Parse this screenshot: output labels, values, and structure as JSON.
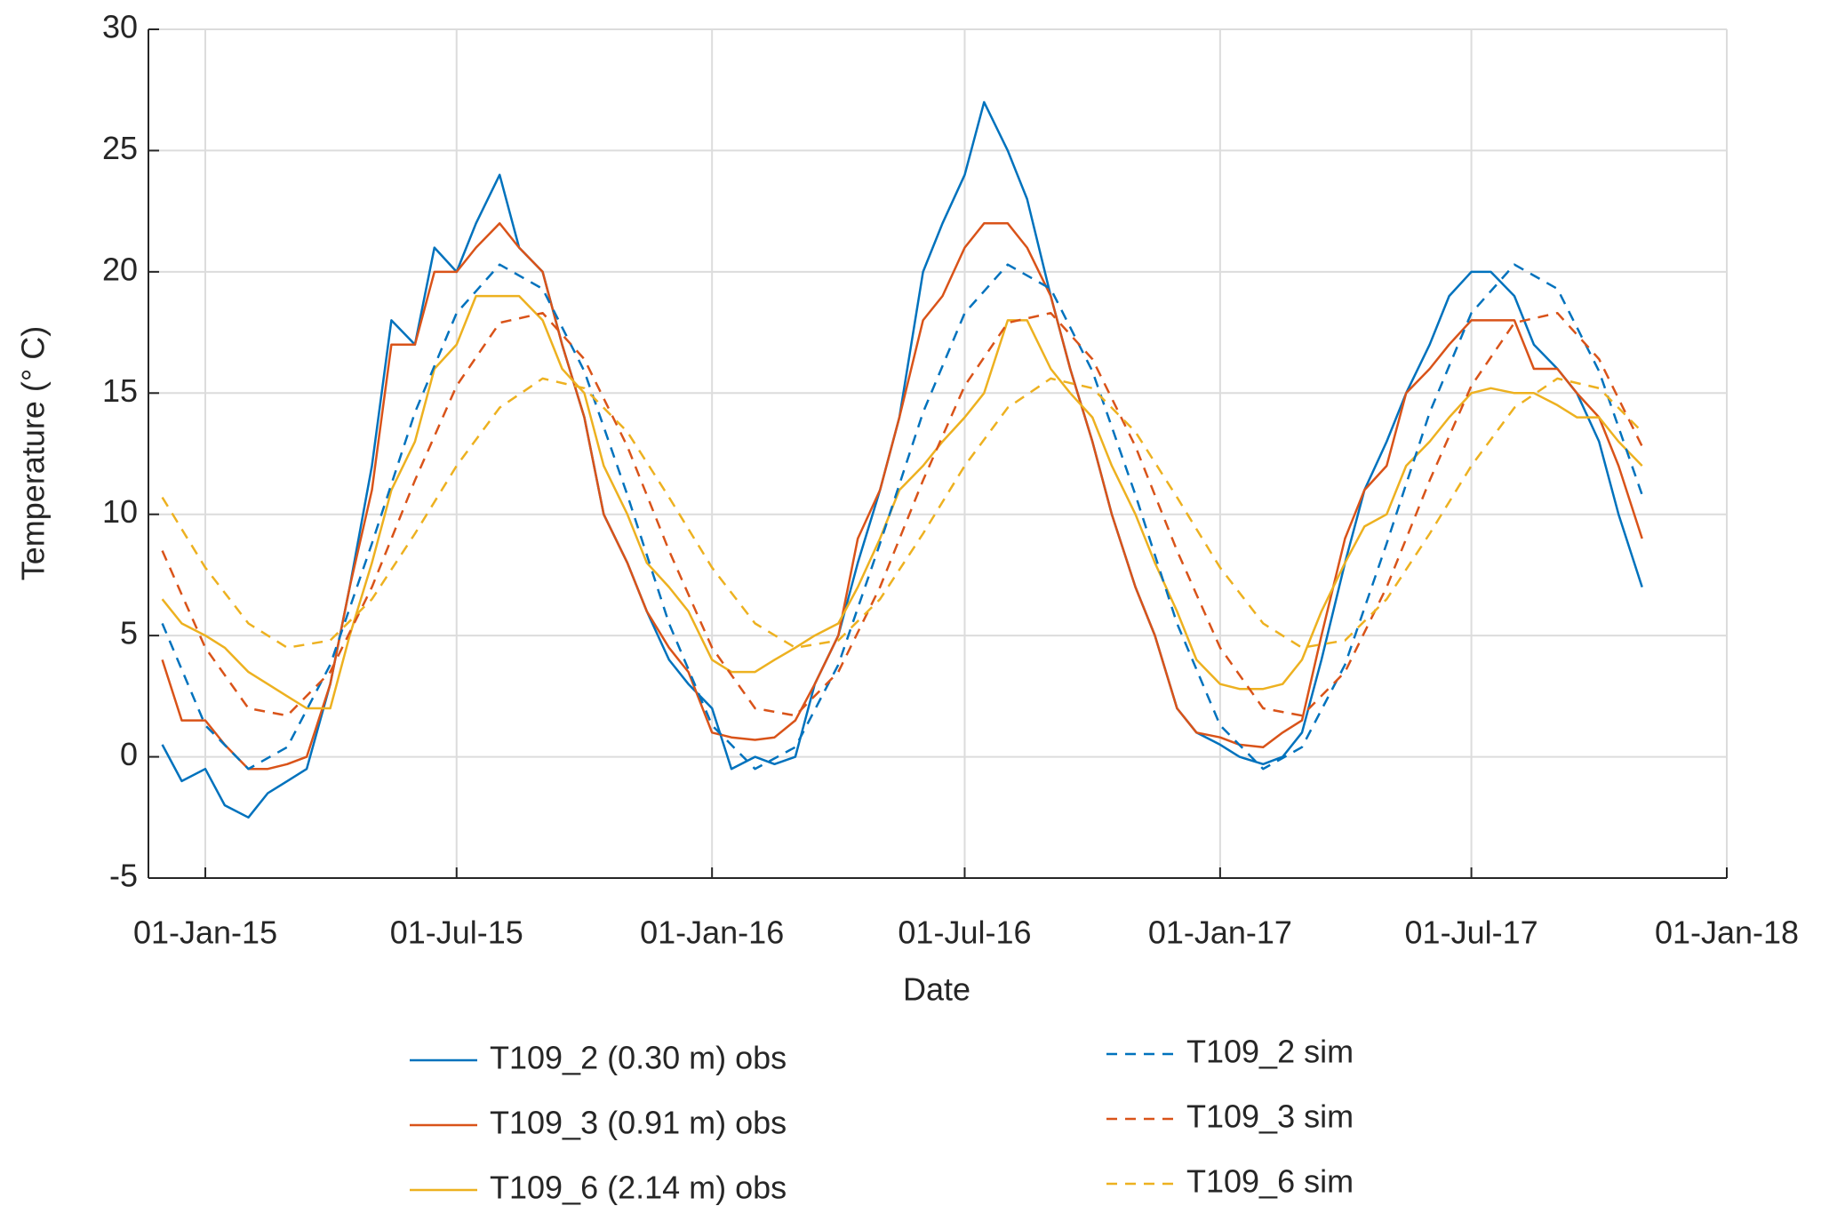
{
  "chart_data": {
    "type": "line",
    "xlabel": "Date",
    "ylabel": "Temperature (° C)",
    "xlim": [
      "2014-11-21",
      "2018-01-01"
    ],
    "xticks": [
      {
        "value": "2015-01-01",
        "label": "01-Jan-15"
      },
      {
        "value": "2015-07-01",
        "label": "01-Jul-15"
      },
      {
        "value": "2016-01-01",
        "label": "01-Jan-16"
      },
      {
        "value": "2016-07-01",
        "label": "01-Jul-16"
      },
      {
        "value": "2017-01-01",
        "label": "01-Jan-17"
      },
      {
        "value": "2017-07-01",
        "label": "01-Jul-17"
      },
      {
        "value": "2018-01-01",
        "label": "01-Jan-18"
      }
    ],
    "ylim": [
      -5,
      30
    ],
    "yticks": [
      -5,
      0,
      5,
      10,
      15,
      20,
      25,
      30
    ],
    "grid": true,
    "x": [
      "2014-12-01",
      "2014-12-15",
      "2015-01-01",
      "2015-01-15",
      "2015-02-01",
      "2015-02-15",
      "2015-03-01",
      "2015-03-15",
      "2015-04-01",
      "2015-04-15",
      "2015-05-01",
      "2015-05-15",
      "2015-06-01",
      "2015-06-15",
      "2015-07-01",
      "2015-07-15",
      "2015-08-01",
      "2015-08-15",
      "2015-09-01",
      "2015-09-15",
      "2015-10-01",
      "2015-10-15",
      "2015-11-01",
      "2015-11-15",
      "2015-12-01",
      "2015-12-15",
      "2016-01-01",
      "2016-01-15",
      "2016-02-01",
      "2016-02-15",
      "2016-03-01",
      "2016-03-15",
      "2016-04-01",
      "2016-04-15",
      "2016-05-01",
      "2016-05-15",
      "2016-06-01",
      "2016-06-15",
      "2016-07-01",
      "2016-07-15",
      "2016-08-01",
      "2016-08-15",
      "2016-09-01",
      "2016-09-15",
      "2016-10-01",
      "2016-10-15",
      "2016-11-01",
      "2016-11-15",
      "2016-12-01",
      "2016-12-15",
      "2017-01-01",
      "2017-01-15",
      "2017-02-01",
      "2017-02-15",
      "2017-03-01",
      "2017-03-15",
      "2017-04-01",
      "2017-04-15",
      "2017-05-01",
      "2017-05-15",
      "2017-06-01",
      "2017-06-15",
      "2017-07-01",
      "2017-07-15",
      "2017-08-01",
      "2017-08-15",
      "2017-09-01",
      "2017-09-15",
      "2017-10-01",
      "2017-10-15",
      "2017-11-01"
    ],
    "series": [
      {
        "name": "T109_2 (0.30 m) obs",
        "color": "#0072BD",
        "linestyle": "solid",
        "values": [
          0.5,
          -1,
          -0.5,
          -2,
          -2.5,
          -1.5,
          -1,
          -0.5,
          3,
          7,
          12,
          18,
          17,
          21,
          20,
          22,
          24,
          21,
          20,
          17,
          14,
          10,
          8,
          6,
          4,
          3,
          2,
          -0.5,
          0,
          -0.3,
          0,
          3,
          5,
          8,
          11,
          14,
          20,
          22,
          24,
          27,
          25,
          23,
          19,
          16,
          13,
          10,
          7,
          5,
          2,
          1,
          0.5,
          0,
          -0.3,
          0,
          1,
          4,
          8,
          11,
          13,
          15,
          17,
          19,
          20,
          20,
          19,
          17,
          16,
          15,
          13,
          10,
          7
        ]
      },
      {
        "name": "T109_3 (0.91 m) obs",
        "color": "#D95319",
        "linestyle": "solid",
        "values": [
          4,
          1.5,
          1.5,
          0.5,
          -0.5,
          -0.5,
          -0.3,
          0,
          3,
          7,
          11,
          17,
          17,
          20,
          20,
          21,
          22,
          21,
          20,
          17,
          14,
          10,
          8,
          6,
          4.5,
          3.5,
          1,
          0.8,
          0.7,
          0.8,
          1.5,
          3,
          5,
          9,
          11,
          14,
          18,
          19,
          21,
          22,
          22,
          21,
          19,
          16,
          13,
          10,
          7,
          5,
          2,
          1,
          0.8,
          0.5,
          0.4,
          1,
          1.5,
          5,
          9,
          11,
          12,
          15,
          16,
          17,
          18,
          18,
          18,
          16,
          16,
          15,
          14,
          12,
          9
        ]
      },
      {
        "name": "T109_6 (2.14 m) obs",
        "color": "#EDB120",
        "linestyle": "solid",
        "values": [
          6.5,
          5.5,
          5,
          4.5,
          3.5,
          3,
          2.5,
          2,
          2,
          5,
          8,
          11,
          13,
          16,
          17,
          19,
          19,
          19,
          18,
          16,
          15,
          12,
          10,
          8,
          7,
          6,
          4,
          3.5,
          3.5,
          4,
          4.5,
          5,
          5.5,
          7,
          9,
          11,
          12,
          13,
          14,
          15,
          18,
          18,
          16,
          15,
          14,
          12,
          10,
          8,
          6,
          4,
          3,
          2.8,
          2.8,
          3,
          4,
          6,
          8,
          9.5,
          10,
          12,
          13,
          14,
          15,
          15.2,
          15,
          15,
          14.5,
          14,
          14,
          13,
          12
        ]
      },
      {
        "name": "T109_2 sim",
        "color": "#0072BD",
        "linestyle": "dashed",
        "x": [
          "2014-12-01",
          "2015-01-01",
          "2015-02-01",
          "2015-03-01",
          "2015-04-01",
          "2015-05-01",
          "2015-06-01",
          "2015-07-01",
          "2015-08-01",
          "2015-09-01",
          "2015-10-01",
          "2015-11-01",
          "2015-12-01",
          "2016-01-01",
          "2016-02-01",
          "2016-03-01",
          "2016-04-01",
          "2016-05-01",
          "2016-06-01",
          "2016-07-01",
          "2016-08-01",
          "2016-09-01",
          "2016-10-01",
          "2016-11-01",
          "2016-12-01",
          "2017-01-01",
          "2017-02-01",
          "2017-03-01",
          "2017-04-01",
          "2017-05-01",
          "2017-06-01",
          "2017-07-01",
          "2017-08-01",
          "2017-09-01",
          "2017-10-01",
          "2017-11-01"
        ],
        "values": [
          5.5,
          1.3,
          -0.5,
          0.4,
          3.8,
          8.8,
          14.2,
          18.3,
          20.3,
          19.3,
          15.9,
          10.8,
          5.5,
          1.3,
          -0.5,
          0.4,
          3.8,
          8.8,
          14.2,
          18.3,
          20.3,
          19.3,
          15.9,
          10.8,
          5.5,
          1.3,
          -0.5,
          0.4,
          3.8,
          8.8,
          14.2,
          18.3,
          20.3,
          19.3,
          15.9,
          10.8
        ]
      },
      {
        "name": "T109_3 sim",
        "color": "#D95319",
        "linestyle": "dashed",
        "x": [
          "2014-12-01",
          "2015-01-01",
          "2015-02-01",
          "2015-03-01",
          "2015-04-01",
          "2015-05-01",
          "2015-06-01",
          "2015-07-01",
          "2015-08-01",
          "2015-09-01",
          "2015-10-01",
          "2015-11-01",
          "2015-12-01",
          "2016-01-01",
          "2016-02-01",
          "2016-03-01",
          "2016-04-01",
          "2016-05-01",
          "2016-06-01",
          "2016-07-01",
          "2016-08-01",
          "2016-09-01",
          "2016-10-01",
          "2016-11-01",
          "2016-12-01",
          "2017-01-01",
          "2017-02-01",
          "2017-03-01",
          "2017-04-01",
          "2017-05-01",
          "2017-06-01",
          "2017-07-01",
          "2017-08-01",
          "2017-09-01",
          "2017-10-01",
          "2017-11-01"
        ],
        "values": [
          8.5,
          4.5,
          2.0,
          1.7,
          3.5,
          7.0,
          11.4,
          15.3,
          17.9,
          18.3,
          16.4,
          12.8,
          8.5,
          4.5,
          2.0,
          1.7,
          3.5,
          7.0,
          11.4,
          15.3,
          17.9,
          18.3,
          16.4,
          12.8,
          8.5,
          4.5,
          2.0,
          1.7,
          3.5,
          7.0,
          11.4,
          15.3,
          17.9,
          18.3,
          16.4,
          12.8
        ]
      },
      {
        "name": "T109_6 sim",
        "color": "#EDB120",
        "linestyle": "dashed",
        "x": [
          "2014-12-01",
          "2015-01-01",
          "2015-02-01",
          "2015-03-01",
          "2015-04-01",
          "2015-05-01",
          "2015-06-01",
          "2015-07-01",
          "2015-08-01",
          "2015-09-01",
          "2015-10-01",
          "2015-11-01",
          "2015-12-01",
          "2016-01-01",
          "2016-02-01",
          "2016-03-01",
          "2016-04-01",
          "2016-05-01",
          "2016-06-01",
          "2016-07-01",
          "2016-08-01",
          "2016-09-01",
          "2016-10-01",
          "2016-11-01",
          "2016-12-01",
          "2017-01-01",
          "2017-02-01",
          "2017-03-01",
          "2017-04-01",
          "2017-05-01",
          "2017-06-01",
          "2017-07-01",
          "2017-08-01",
          "2017-09-01",
          "2017-10-01",
          "2017-11-01"
        ],
        "values": [
          10.7,
          7.8,
          5.5,
          4.5,
          4.8,
          6.5,
          9.2,
          12.0,
          14.4,
          15.6,
          15.2,
          13.4,
          10.7,
          7.8,
          5.5,
          4.5,
          4.8,
          6.5,
          9.2,
          12.0,
          14.4,
          15.6,
          15.2,
          13.4,
          10.7,
          7.8,
          5.5,
          4.5,
          4.8,
          6.5,
          9.2,
          12.0,
          14.4,
          15.6,
          15.2,
          13.4
        ]
      }
    ]
  }
}
